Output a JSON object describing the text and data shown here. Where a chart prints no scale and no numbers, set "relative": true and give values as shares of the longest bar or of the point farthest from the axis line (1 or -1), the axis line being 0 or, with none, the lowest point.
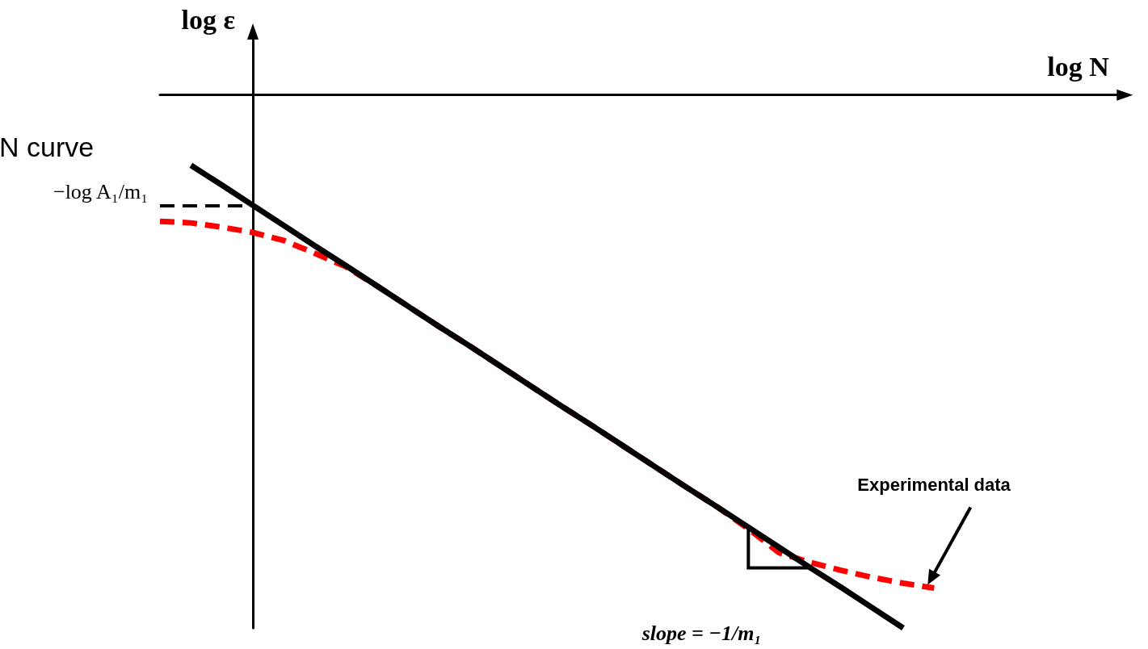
{
  "chart_data": {
    "type": "line",
    "title": "N curve",
    "xlabel": "log N",
    "ylabel": "log ε",
    "relative": true,
    "marker": "none",
    "grid": false,
    "categories": [
      null,
      null,
      null,
      null,
      null,
      null,
      null,
      null,
      null,
      null,
      null,
      null,
      null,
      null,
      null,
      null,
      null,
      null,
      null,
      null,
      null,
      null,
      null,
      null,
      null,
      null,
      null,
      null,
      null,
      null,
      null,
      null
    ],
    "series": [
      {
        "color": "#000000",
        "line_style": "solid",
        "values": [
          null,
          -0.132,
          -0.169,
          -0.207,
          -0.245,
          -0.283,
          -0.32,
          -0.358,
          -0.396,
          -0.434,
          -0.471,
          -0.509,
          -0.547,
          -0.585,
          -0.622,
          -0.66,
          -0.698,
          -0.736,
          -0.773,
          -0.811,
          -0.849,
          -0.887,
          -0.924,
          -0.962,
          -1,
          null,
          null,
          null,
          null,
          null,
          null,
          null
        ]
      },
      {
        "color": "#ff0000",
        "line_style": "dashed",
        "values": [
          -0.237,
          -0.24,
          -0.248,
          -0.258,
          -0.273,
          -0.297,
          -0.322,
          -0.358,
          -0.396,
          -0.434,
          -0.471,
          -0.509,
          -0.547,
          -0.585,
          -0.622,
          -0.66,
          -0.698,
          -0.736,
          -0.773,
          -0.814,
          -0.859,
          -0.877,
          -0.892,
          -0.905,
          -0.916,
          -0.925,
          null,
          null,
          null,
          null,
          null,
          null
        ]
      }
    ],
    "ref_lines": [
      {
        "axis": "y",
        "value": -0.207,
        "label": "−log A₁/m₁",
        "color": "#000000",
        "line_style": "dashed"
      }
    ],
    "annotations": [
      "Experimental data",
      "slope = −1/m₁"
    ]
  }
}
